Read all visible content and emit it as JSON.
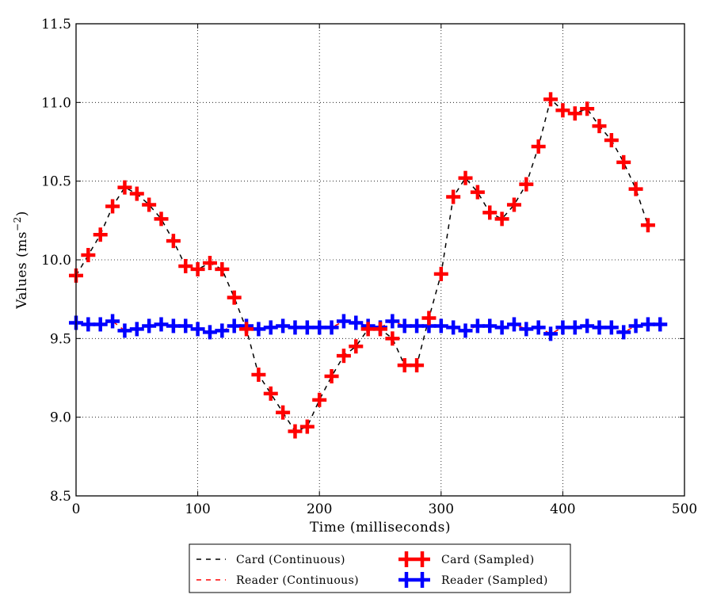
{
  "chart_data": {
    "type": "line",
    "xlabel": "Time (milliseconds)",
    "ylabel_main": "Values (ms",
    "ylabel_sup": "−2",
    "ylabel_close": ")",
    "xlim": [
      0,
      500
    ],
    "ylim": [
      8.5,
      11.5
    ],
    "xticks": [
      0,
      100,
      200,
      300,
      400,
      500
    ],
    "yticks": [
      8.5,
      9.0,
      9.5,
      10.0,
      10.5,
      11.0,
      11.5
    ],
    "xtick_labels": [
      "0",
      "100",
      "200",
      "300",
      "400",
      "500"
    ],
    "ytick_labels": [
      "8.5",
      "9.0",
      "9.5",
      "10.0",
      "10.5",
      "11.0",
      "11.5"
    ],
    "grid": true,
    "legend_position": "below",
    "series": [
      {
        "name": "Card (Continuous)",
        "style": "dashed",
        "color": "#000000",
        "x": [
          0,
          10,
          20,
          30,
          40,
          50,
          60,
          70,
          80,
          90,
          100,
          110,
          120,
          130,
          140,
          150,
          160,
          170,
          180,
          190,
          200,
          210,
          220,
          230,
          240,
          250,
          260,
          270,
          280,
          290,
          300,
          310,
          320,
          330,
          340,
          350,
          360,
          370,
          380,
          390,
          400,
          410,
          420,
          430,
          440,
          450,
          460,
          470
        ],
        "y": [
          9.9,
          10.03,
          10.16,
          10.34,
          10.46,
          10.42,
          10.35,
          10.26,
          10.12,
          9.96,
          9.94,
          9.98,
          9.94,
          9.76,
          9.56,
          9.27,
          9.15,
          9.03,
          8.91,
          8.94,
          9.11,
          9.26,
          9.39,
          9.45,
          9.56,
          9.56,
          9.5,
          9.33,
          9.33,
          9.63,
          9.91,
          10.4,
          10.52,
          10.43,
          10.3,
          10.26,
          10.35,
          10.48,
          10.72,
          11.02,
          10.95,
          10.93,
          10.96,
          10.85,
          10.76,
          10.62,
          10.45,
          10.22
        ]
      },
      {
        "name": "Reader (Continuous)",
        "style": "dashed",
        "color": "#ff0000",
        "x": [
          0,
          10,
          20,
          30,
          40,
          50,
          60,
          70,
          80,
          90,
          100,
          110,
          120,
          130,
          140,
          150,
          160,
          170,
          180,
          190,
          200,
          210,
          220,
          230,
          240,
          250,
          260,
          270,
          280,
          290,
          300,
          310,
          320,
          330,
          340,
          350,
          360,
          370,
          380,
          390,
          400,
          410,
          420,
          430,
          440,
          450,
          460,
          470,
          480
        ],
        "y": [
          9.6,
          9.59,
          9.59,
          9.61,
          9.55,
          9.56,
          9.58,
          9.59,
          9.58,
          9.58,
          9.56,
          9.54,
          9.55,
          9.58,
          9.58,
          9.56,
          9.57,
          9.58,
          9.57,
          9.57,
          9.57,
          9.57,
          9.61,
          9.6,
          9.58,
          9.57,
          9.61,
          9.58,
          9.58,
          9.58,
          9.58,
          9.57,
          9.55,
          9.58,
          9.58,
          9.57,
          9.59,
          9.56,
          9.57,
          9.53,
          9.57,
          9.57,
          9.58,
          9.57,
          9.57,
          9.54,
          9.58,
          9.59,
          9.59
        ]
      },
      {
        "name": "Card (Sampled)",
        "marker": "plus",
        "color": "#ff0000",
        "x": [
          0,
          10,
          20,
          30,
          40,
          50,
          60,
          70,
          80,
          90,
          100,
          110,
          120,
          130,
          140,
          150,
          160,
          170,
          180,
          190,
          200,
          210,
          220,
          230,
          240,
          250,
          260,
          270,
          280,
          290,
          300,
          310,
          320,
          330,
          340,
          350,
          360,
          370,
          380,
          390,
          400,
          410,
          420,
          430,
          440,
          450,
          460,
          470
        ],
        "y": [
          9.9,
          10.03,
          10.16,
          10.34,
          10.46,
          10.42,
          10.35,
          10.26,
          10.12,
          9.96,
          9.94,
          9.98,
          9.94,
          9.76,
          9.56,
          9.27,
          9.15,
          9.03,
          8.91,
          8.94,
          9.11,
          9.26,
          9.39,
          9.45,
          9.56,
          9.56,
          9.5,
          9.33,
          9.33,
          9.63,
          9.91,
          10.4,
          10.52,
          10.43,
          10.3,
          10.26,
          10.35,
          10.48,
          10.72,
          11.02,
          10.95,
          10.93,
          10.96,
          10.85,
          10.76,
          10.62,
          10.45,
          10.22
        ]
      },
      {
        "name": "Reader (Sampled)",
        "marker": "plus",
        "color": "#0000ff",
        "x": [
          0,
          10,
          20,
          30,
          40,
          50,
          60,
          70,
          80,
          90,
          100,
          110,
          120,
          130,
          140,
          150,
          160,
          170,
          180,
          190,
          200,
          210,
          220,
          230,
          240,
          250,
          260,
          270,
          280,
          290,
          300,
          310,
          320,
          330,
          340,
          350,
          360,
          370,
          380,
          390,
          400,
          410,
          420,
          430,
          440,
          450,
          460,
          470,
          480
        ],
        "y": [
          9.6,
          9.59,
          9.59,
          9.61,
          9.55,
          9.56,
          9.58,
          9.59,
          9.58,
          9.58,
          9.56,
          9.54,
          9.55,
          9.58,
          9.58,
          9.56,
          9.57,
          9.58,
          9.57,
          9.57,
          9.57,
          9.57,
          9.61,
          9.6,
          9.58,
          9.57,
          9.61,
          9.58,
          9.58,
          9.58,
          9.58,
          9.57,
          9.55,
          9.58,
          9.58,
          9.57,
          9.59,
          9.56,
          9.57,
          9.53,
          9.57,
          9.57,
          9.58,
          9.57,
          9.57,
          9.54,
          9.58,
          9.59,
          9.59
        ]
      }
    ]
  }
}
